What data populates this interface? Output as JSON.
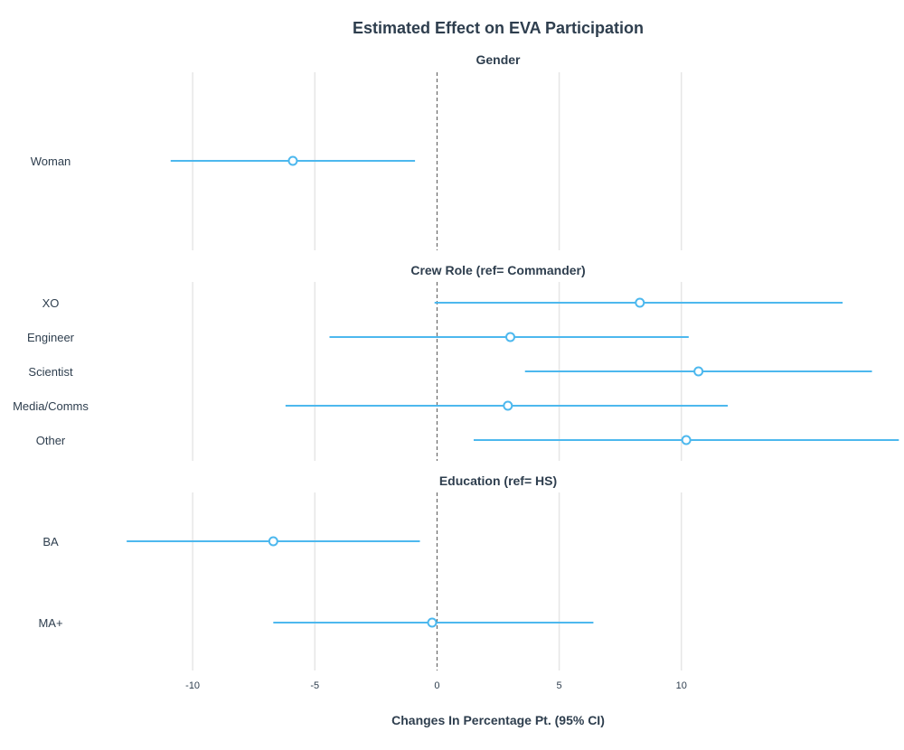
{
  "chart_data": {
    "type": "scatter",
    "title": "Estimated Effect on EVA Participation",
    "xlabel": "Changes In Percentage Pt. (95% CI)",
    "xlim": [
      -14,
      19
    ],
    "xticks": [
      -10,
      -5,
      0,
      5,
      10
    ],
    "xtick_labels": [
      "-10",
      "-5",
      "0",
      "5",
      "10"
    ],
    "grid": true,
    "reference_line": 0,
    "colors": {
      "series": "#4db8ee",
      "text": "#2e3e4e",
      "grid": "#e6e6e6"
    },
    "panels": [
      {
        "title": "Gender",
        "rows": [
          {
            "label": "Woman",
            "estimate": -5.9,
            "lower": -10.9,
            "upper": -0.9
          }
        ]
      },
      {
        "title": "Crew Role (ref= Commander)",
        "rows": [
          {
            "label": "XO",
            "estimate": 8.3,
            "lower": -0.1,
            "upper": 16.6
          },
          {
            "label": "Engineer",
            "estimate": 3.0,
            "lower": -4.4,
            "upper": 10.3
          },
          {
            "label": "Scientist",
            "estimate": 10.7,
            "lower": 3.6,
            "upper": 17.8
          },
          {
            "label": "Media/Comms",
            "estimate": 2.9,
            "lower": -6.2,
            "upper": 11.9
          },
          {
            "label": "Other",
            "estimate": 10.2,
            "lower": 1.5,
            "upper": 18.9
          }
        ]
      },
      {
        "title": "Education (ref= HS)",
        "rows": [
          {
            "label": "BA",
            "estimate": -6.7,
            "lower": -12.7,
            "upper": -0.7
          },
          {
            "label": "MA+",
            "estimate": -0.2,
            "lower": -6.7,
            "upper": 6.4
          }
        ]
      }
    ]
  }
}
